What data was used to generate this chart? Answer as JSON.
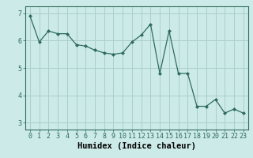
{
  "x": [
    0,
    1,
    2,
    3,
    4,
    5,
    6,
    7,
    8,
    9,
    10,
    11,
    12,
    13,
    14,
    15,
    16,
    17,
    18,
    19,
    20,
    21,
    22,
    23
  ],
  "y": [
    6.9,
    5.95,
    6.35,
    6.25,
    6.25,
    5.85,
    5.8,
    5.65,
    5.55,
    5.5,
    5.55,
    5.95,
    6.2,
    6.6,
    4.8,
    6.35,
    4.8,
    4.8,
    3.6,
    3.6,
    3.85,
    3.35,
    3.5,
    3.35
  ],
  "line_color": "#2e6b5e",
  "marker": "D",
  "marker_size": 2.0,
  "background_color": "#cceae7",
  "grid_color": "#aacfcc",
  "xlabel": "Humidex (Indice chaleur)",
  "ylim": [
    2.75,
    7.25
  ],
  "xlim": [
    -0.5,
    23.5
  ],
  "yticks": [
    3,
    4,
    5,
    6,
    7
  ],
  "xticks": [
    0,
    1,
    2,
    3,
    4,
    5,
    6,
    7,
    8,
    9,
    10,
    11,
    12,
    13,
    14,
    15,
    16,
    17,
    18,
    19,
    20,
    21,
    22,
    23
  ],
  "xlabel_fontsize": 7.5,
  "tick_fontsize": 6.0
}
